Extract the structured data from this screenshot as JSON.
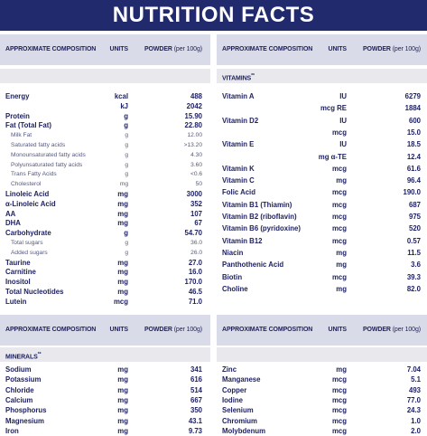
{
  "header": {
    "title": "NUTRITION FACTS"
  },
  "panels": [
    {
      "columns": [
        "APPROXIMATE COMPOSITION",
        "UNITS",
        "POWDER",
        "(per 100g)"
      ],
      "rows": [
        [
          "Energy",
          "kcal",
          "488"
        ],
        [
          null,
          "kJ",
          "2042"
        ],
        [
          "Protein",
          "g",
          "15.90"
        ],
        [
          "Fat (Total Fat)",
          "g",
          "22.80"
        ],
        [
          "Milk Fat",
          "g",
          "12.00"
        ],
        [
          "Saturated fatty acids",
          "g",
          ">13.20"
        ],
        [
          "Monounsaturated fatty acids",
          "g",
          "4.30"
        ],
        [
          "Polyunsaturated fatty acids",
          "g",
          "3.60"
        ],
        [
          "Trans Fatty Acids",
          "g",
          "<0.6"
        ],
        [
          "Cholesterol",
          "mg",
          "50"
        ],
        [
          "Linoleic Acid",
          "mg",
          "3000"
        ],
        [
          "α-Linoleic Acid",
          "mg",
          "352"
        ],
        [
          "AA",
          "mg",
          "107"
        ],
        [
          "DHA",
          "mg",
          "67"
        ],
        [
          "Carbohydrate",
          "g",
          "54.70"
        ],
        [
          "Total sugars",
          "g",
          "36.0"
        ],
        [
          "Added sugars",
          "g",
          "26.0"
        ],
        [
          "Taurine",
          "mg",
          "27.0"
        ],
        [
          "Carnitine",
          "mg",
          "16.0"
        ],
        [
          "Inositol",
          "mg",
          "170.0"
        ],
        [
          "Total Nucleotides",
          "mg",
          "46.5"
        ],
        [
          "Lutein",
          "mcg",
          "71.0"
        ]
      ]
    },
    {
      "columns": [
        "APPROXIMATE COMPOSITION",
        "UNITS",
        "POWDER",
        "(per 100g)"
      ],
      "section": "VITAMINS",
      "section_note": "**",
      "rows": [
        [
          "Vitamin A",
          "IU",
          "6279"
        ],
        [
          null,
          "mcg RE",
          "1884"
        ],
        [
          "Vitamin D2",
          "IU",
          "600"
        ],
        [
          null,
          "mcg",
          "15.0"
        ],
        [
          "Vitamin E",
          "IU",
          "18.5"
        ],
        [
          null,
          "mg α-TE",
          "12.4"
        ],
        [
          "Vitamin K",
          "mcg",
          "61.6"
        ],
        [
          "Vitamin C",
          "mg",
          "96.4"
        ],
        [
          "Folic Acid",
          "mcg",
          "190.0"
        ],
        [
          "Vitamin B1 (Thiamin)",
          "mcg",
          "687"
        ],
        [
          "Vitamin B2 (riboflavin)",
          "mcg",
          "975"
        ],
        [
          "Vitamin B6 (pyridoxine)",
          "mcg",
          "520"
        ],
        [
          "Vitamin B12",
          "mcg",
          "0.57"
        ],
        [
          "Niacin",
          "mg",
          "11.5"
        ],
        [
          "Panthothenic Acid",
          "mg",
          "3.6"
        ],
        [
          "Biotin",
          "mcg",
          "39.3"
        ],
        [
          "Choline",
          "mg",
          "82.0"
        ]
      ]
    },
    {
      "columns": [
        "APPROXIMATE COMPOSITION",
        "UNITS",
        "POWDER",
        "(per 100g)"
      ],
      "section": "MINERALS",
      "section_note": "**",
      "rows": [
        [
          "Sodium",
          "mg",
          "341"
        ],
        [
          "Potassium",
          "mg",
          "616"
        ],
        [
          "Chloride",
          "mg",
          "514"
        ],
        [
          "Calcium",
          "mg",
          "667"
        ],
        [
          "Phosphorus",
          "mg",
          "350"
        ],
        [
          "Magnesium",
          "mg",
          "43.1"
        ],
        [
          "Iron",
          "mg",
          "9.73"
        ]
      ]
    },
    {
      "columns": [
        "APPROXIMATE COMPOSITION",
        "UNITS",
        "POWDER",
        "(per 100g)"
      ],
      "rows": [
        [
          "Zinc",
          "mg",
          "7.04"
        ],
        [
          "Manganese",
          "mcg",
          "5.1"
        ],
        [
          "Copper",
          "mcg",
          "493"
        ],
        [
          "Iodine",
          "mcg",
          "77.0"
        ],
        [
          "Selenium",
          "mcg",
          "24.3"
        ],
        [
          "Chromium",
          "mcg",
          "1.0"
        ],
        [
          "Molybdenum",
          "mcg",
          "2.0"
        ]
      ]
    }
  ]
}
